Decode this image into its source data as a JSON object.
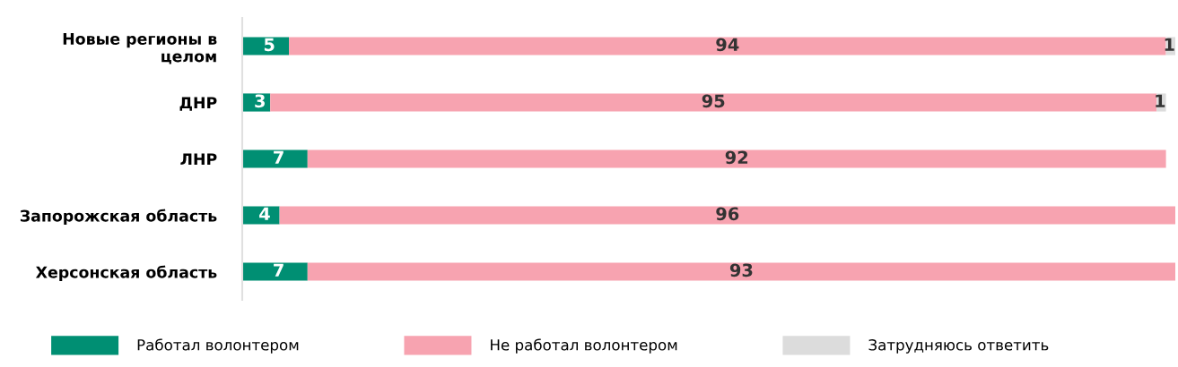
{
  "chart_data": {
    "type": "bar",
    "orientation": "horizontal",
    "stacked": true,
    "categories": [
      "Новые регионы в целом",
      "ДНР",
      "ЛНР",
      "Запорожская область",
      "Херсонская область"
    ],
    "series": [
      {
        "name": "Работал волонтером",
        "color": "#008f73",
        "values": [
          5,
          3,
          7,
          4,
          7
        ]
      },
      {
        "name": "Не работал волонтером",
        "color": "#f7a3b0",
        "values": [
          94,
          95,
          92,
          96,
          93
        ]
      },
      {
        "name": "Затрудняюсь ответить",
        "color": "#dcdcdc",
        "values": [
          1,
          1,
          null,
          null,
          null
        ]
      }
    ],
    "xlim": [
      0,
      100
    ],
    "data_labels": true,
    "legend": "bottom",
    "grid": false,
    "tick_labels": "y"
  }
}
